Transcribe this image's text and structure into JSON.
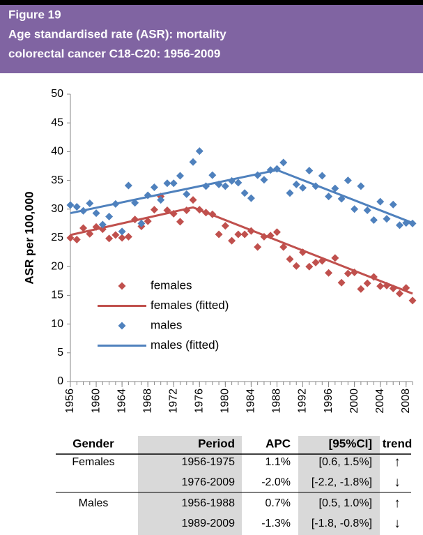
{
  "header": {
    "figure": "Figure 19",
    "title_lines": [
      "Age standardised rate (ASR): mortality",
      "colorectal cancer C18-C20:  1956-2009"
    ]
  },
  "chart_data": {
    "type": "scatter",
    "y_label": "ASR per 100,000",
    "xlim": [
      1956,
      2009
    ],
    "ylim": [
      0,
      50
    ],
    "xticks": [
      1956,
      1960,
      1964,
      1968,
      1972,
      1976,
      1980,
      1984,
      1988,
      1992,
      1996,
      2000,
      2004,
      2008
    ],
    "yticks": [
      0,
      5,
      10,
      15,
      20,
      25,
      30,
      35,
      40,
      45,
      50
    ],
    "legend": "lower-left",
    "series": [
      {
        "name": "females",
        "color": "#c0504d",
        "style": "markers",
        "x": [
          1956,
          1957,
          1958,
          1959,
          1960,
          1961,
          1962,
          1963,
          1964,
          1965,
          1966,
          1967,
          1968,
          1969,
          1970,
          1971,
          1972,
          1973,
          1974,
          1975,
          1976,
          1977,
          1978,
          1979,
          1980,
          1981,
          1982,
          1983,
          1984,
          1985,
          1986,
          1987,
          1988,
          1989,
          1990,
          1991,
          1992,
          1993,
          1994,
          1995,
          1996,
          1997,
          1998,
          1999,
          2000,
          2001,
          2002,
          2003,
          2004,
          2005,
          2006,
          2007,
          2008,
          2009
        ],
        "values": [
          25.0,
          24.7,
          26.7,
          25.7,
          26.9,
          26.5,
          24.9,
          25.5,
          25.0,
          25.2,
          28.2,
          27.0,
          27.9,
          29.9,
          32.2,
          29.8,
          29.2,
          27.8,
          29.8,
          31.6,
          29.9,
          29.4,
          29.1,
          25.6,
          27.1,
          24.5,
          25.6,
          25.6,
          26.2,
          23.4,
          25.2,
          25.4,
          26.0,
          23.4,
          21.3,
          20.1,
          22.5,
          20.0,
          20.7,
          21.0,
          18.9,
          21.5,
          17.2,
          18.8,
          19.0,
          16.1,
          17.1,
          18.2,
          16.6,
          16.7,
          16.2,
          15.3,
          16.3,
          14.1
        ]
      },
      {
        "name": "females (fitted)",
        "color": "#c0504d",
        "style": "line",
        "x": [
          1956,
          1975,
          2009
        ],
        "values": [
          25.5,
          30.3,
          15.3
        ]
      },
      {
        "name": "males",
        "color": "#4f81bd",
        "style": "markers",
        "x": [
          1956,
          1957,
          1958,
          1959,
          1960,
          1961,
          1962,
          1963,
          1964,
          1965,
          1966,
          1967,
          1968,
          1969,
          1970,
          1971,
          1972,
          1973,
          1974,
          1975,
          1976,
          1977,
          1978,
          1979,
          1980,
          1981,
          1982,
          1983,
          1984,
          1985,
          1986,
          1987,
          1988,
          1989,
          1990,
          1991,
          1992,
          1993,
          1994,
          1995,
          1996,
          1997,
          1998,
          1999,
          2000,
          2001,
          2002,
          2003,
          2004,
          2005,
          2006,
          2007,
          2008,
          2009
        ],
        "values": [
          30.7,
          30.4,
          29.7,
          31.0,
          29.3,
          27.3,
          28.7,
          30.9,
          26.1,
          34.1,
          31.1,
          27.5,
          32.4,
          33.8,
          31.6,
          34.5,
          34.5,
          35.8,
          32.6,
          38.2,
          40.1,
          34.0,
          35.9,
          34.3,
          34.0,
          34.9,
          34.6,
          32.8,
          31.9,
          35.9,
          35.1,
          36.8,
          37.0,
          38.1,
          32.8,
          34.3,
          33.7,
          36.7,
          34.0,
          35.8,
          32.2,
          33.6,
          31.8,
          35.0,
          30.0,
          34.0,
          29.8,
          28.1,
          31.3,
          28.3,
          30.8,
          27.2,
          27.6,
          27.5
        ]
      },
      {
        "name": "males (fitted)",
        "color": "#4f81bd",
        "style": "line",
        "x": [
          1956,
          1988,
          2009
        ],
        "values": [
          29.3,
          36.8,
          27.6
        ]
      }
    ]
  },
  "table": {
    "columns": [
      "Gender",
      "Period",
      "APC",
      "[95%CI]",
      "trend"
    ],
    "rows": [
      [
        "Females",
        "1956-1975",
        "1.1%",
        "[0.6, 1.5%]",
        "↑"
      ],
      [
        null,
        "1976-2009",
        "-2.0%",
        "[-2.2, -1.8%]",
        "↓"
      ],
      [
        "Males",
        "1956-1988",
        "0.7%",
        "[0.5, 1.0%]",
        "↑"
      ],
      [
        null,
        "1989-2009",
        "-1.3%",
        "[-1.8, -0.8%]",
        "↓"
      ]
    ]
  }
}
